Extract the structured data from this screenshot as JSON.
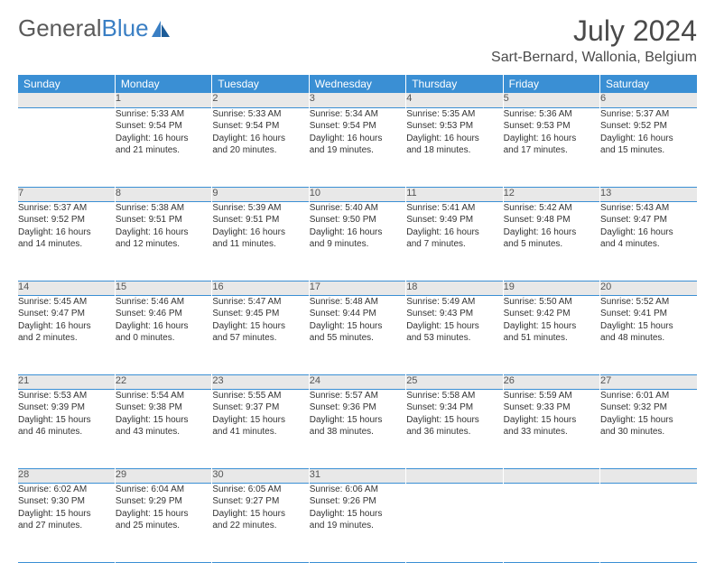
{
  "brand": {
    "part1": "General",
    "part2": "Blue"
  },
  "title": "July 2024",
  "location": "Sart-Bernard, Wallonia, Belgium",
  "colors": {
    "header_bg": "#3a8fd4",
    "header_text": "#ffffff",
    "num_bg": "#e8e8e8",
    "rule": "#3a8fd4",
    "brand_gray": "#5a5a5a",
    "brand_blue": "#3a7fc4"
  },
  "weekdays": [
    "Sunday",
    "Monday",
    "Tuesday",
    "Wednesday",
    "Thursday",
    "Friday",
    "Saturday"
  ],
  "weeks": [
    [
      null,
      {
        "n": "1",
        "sr": "Sunrise: 5:33 AM",
        "ss": "Sunset: 9:54 PM",
        "d1": "Daylight: 16 hours",
        "d2": "and 21 minutes."
      },
      {
        "n": "2",
        "sr": "Sunrise: 5:33 AM",
        "ss": "Sunset: 9:54 PM",
        "d1": "Daylight: 16 hours",
        "d2": "and 20 minutes."
      },
      {
        "n": "3",
        "sr": "Sunrise: 5:34 AM",
        "ss": "Sunset: 9:54 PM",
        "d1": "Daylight: 16 hours",
        "d2": "and 19 minutes."
      },
      {
        "n": "4",
        "sr": "Sunrise: 5:35 AM",
        "ss": "Sunset: 9:53 PM",
        "d1": "Daylight: 16 hours",
        "d2": "and 18 minutes."
      },
      {
        "n": "5",
        "sr": "Sunrise: 5:36 AM",
        "ss": "Sunset: 9:53 PM",
        "d1": "Daylight: 16 hours",
        "d2": "and 17 minutes."
      },
      {
        "n": "6",
        "sr": "Sunrise: 5:37 AM",
        "ss": "Sunset: 9:52 PM",
        "d1": "Daylight: 16 hours",
        "d2": "and 15 minutes."
      }
    ],
    [
      {
        "n": "7",
        "sr": "Sunrise: 5:37 AM",
        "ss": "Sunset: 9:52 PM",
        "d1": "Daylight: 16 hours",
        "d2": "and 14 minutes."
      },
      {
        "n": "8",
        "sr": "Sunrise: 5:38 AM",
        "ss": "Sunset: 9:51 PM",
        "d1": "Daylight: 16 hours",
        "d2": "and 12 minutes."
      },
      {
        "n": "9",
        "sr": "Sunrise: 5:39 AM",
        "ss": "Sunset: 9:51 PM",
        "d1": "Daylight: 16 hours",
        "d2": "and 11 minutes."
      },
      {
        "n": "10",
        "sr": "Sunrise: 5:40 AM",
        "ss": "Sunset: 9:50 PM",
        "d1": "Daylight: 16 hours",
        "d2": "and 9 minutes."
      },
      {
        "n": "11",
        "sr": "Sunrise: 5:41 AM",
        "ss": "Sunset: 9:49 PM",
        "d1": "Daylight: 16 hours",
        "d2": "and 7 minutes."
      },
      {
        "n": "12",
        "sr": "Sunrise: 5:42 AM",
        "ss": "Sunset: 9:48 PM",
        "d1": "Daylight: 16 hours",
        "d2": "and 5 minutes."
      },
      {
        "n": "13",
        "sr": "Sunrise: 5:43 AM",
        "ss": "Sunset: 9:47 PM",
        "d1": "Daylight: 16 hours",
        "d2": "and 4 minutes."
      }
    ],
    [
      {
        "n": "14",
        "sr": "Sunrise: 5:45 AM",
        "ss": "Sunset: 9:47 PM",
        "d1": "Daylight: 16 hours",
        "d2": "and 2 minutes."
      },
      {
        "n": "15",
        "sr": "Sunrise: 5:46 AM",
        "ss": "Sunset: 9:46 PM",
        "d1": "Daylight: 16 hours",
        "d2": "and 0 minutes."
      },
      {
        "n": "16",
        "sr": "Sunrise: 5:47 AM",
        "ss": "Sunset: 9:45 PM",
        "d1": "Daylight: 15 hours",
        "d2": "and 57 minutes."
      },
      {
        "n": "17",
        "sr": "Sunrise: 5:48 AM",
        "ss": "Sunset: 9:44 PM",
        "d1": "Daylight: 15 hours",
        "d2": "and 55 minutes."
      },
      {
        "n": "18",
        "sr": "Sunrise: 5:49 AM",
        "ss": "Sunset: 9:43 PM",
        "d1": "Daylight: 15 hours",
        "d2": "and 53 minutes."
      },
      {
        "n": "19",
        "sr": "Sunrise: 5:50 AM",
        "ss": "Sunset: 9:42 PM",
        "d1": "Daylight: 15 hours",
        "d2": "and 51 minutes."
      },
      {
        "n": "20",
        "sr": "Sunrise: 5:52 AM",
        "ss": "Sunset: 9:41 PM",
        "d1": "Daylight: 15 hours",
        "d2": "and 48 minutes."
      }
    ],
    [
      {
        "n": "21",
        "sr": "Sunrise: 5:53 AM",
        "ss": "Sunset: 9:39 PM",
        "d1": "Daylight: 15 hours",
        "d2": "and 46 minutes."
      },
      {
        "n": "22",
        "sr": "Sunrise: 5:54 AM",
        "ss": "Sunset: 9:38 PM",
        "d1": "Daylight: 15 hours",
        "d2": "and 43 minutes."
      },
      {
        "n": "23",
        "sr": "Sunrise: 5:55 AM",
        "ss": "Sunset: 9:37 PM",
        "d1": "Daylight: 15 hours",
        "d2": "and 41 minutes."
      },
      {
        "n": "24",
        "sr": "Sunrise: 5:57 AM",
        "ss": "Sunset: 9:36 PM",
        "d1": "Daylight: 15 hours",
        "d2": "and 38 minutes."
      },
      {
        "n": "25",
        "sr": "Sunrise: 5:58 AM",
        "ss": "Sunset: 9:34 PM",
        "d1": "Daylight: 15 hours",
        "d2": "and 36 minutes."
      },
      {
        "n": "26",
        "sr": "Sunrise: 5:59 AM",
        "ss": "Sunset: 9:33 PM",
        "d1": "Daylight: 15 hours",
        "d2": "and 33 minutes."
      },
      {
        "n": "27",
        "sr": "Sunrise: 6:01 AM",
        "ss": "Sunset: 9:32 PM",
        "d1": "Daylight: 15 hours",
        "d2": "and 30 minutes."
      }
    ],
    [
      {
        "n": "28",
        "sr": "Sunrise: 6:02 AM",
        "ss": "Sunset: 9:30 PM",
        "d1": "Daylight: 15 hours",
        "d2": "and 27 minutes."
      },
      {
        "n": "29",
        "sr": "Sunrise: 6:04 AM",
        "ss": "Sunset: 9:29 PM",
        "d1": "Daylight: 15 hours",
        "d2": "and 25 minutes."
      },
      {
        "n": "30",
        "sr": "Sunrise: 6:05 AM",
        "ss": "Sunset: 9:27 PM",
        "d1": "Daylight: 15 hours",
        "d2": "and 22 minutes."
      },
      {
        "n": "31",
        "sr": "Sunrise: 6:06 AM",
        "ss": "Sunset: 9:26 PM",
        "d1": "Daylight: 15 hours",
        "d2": "and 19 minutes."
      },
      null,
      null,
      null
    ]
  ]
}
